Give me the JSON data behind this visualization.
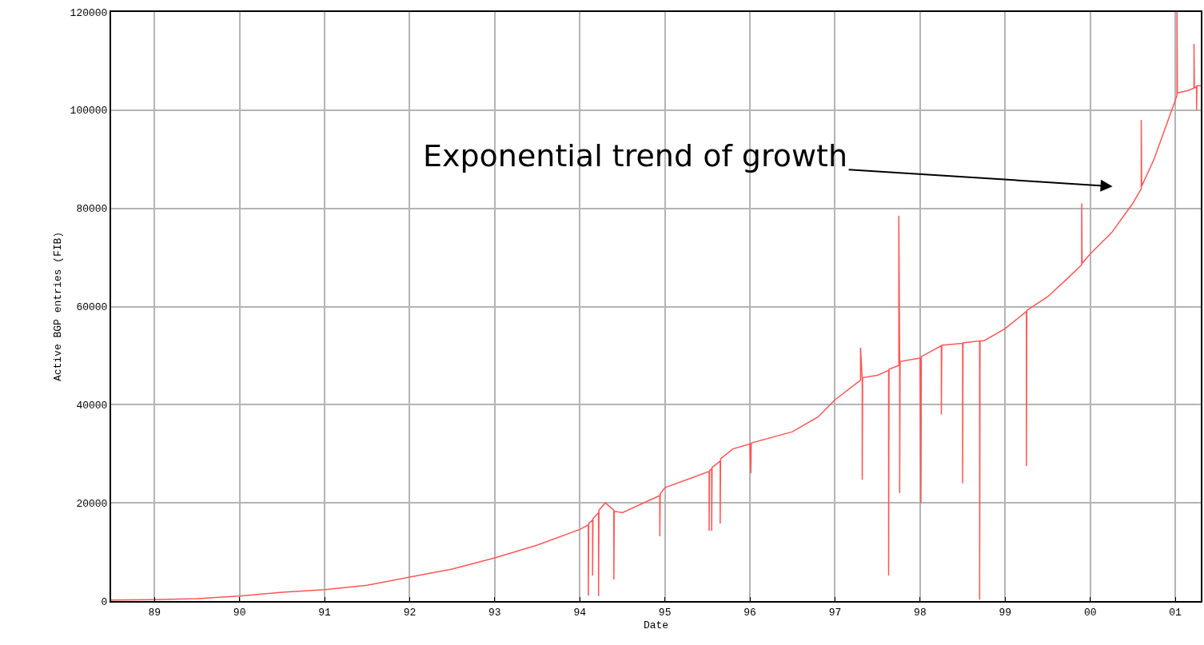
{
  "chart_data": {
    "type": "line",
    "xlabel": "Date",
    "ylabel": "Active BGP entries (FIB)",
    "annotations": [
      "Exponential trend of growth"
    ],
    "xlim": [
      1988.49,
      2001.3
    ],
    "ylim": [
      0,
      120000
    ],
    "xticks": [
      {
        "value": 1989,
        "label": "89"
      },
      {
        "value": 1990,
        "label": "90"
      },
      {
        "value": 1991,
        "label": "91"
      },
      {
        "value": 1992,
        "label": "92"
      },
      {
        "value": 1993,
        "label": "93"
      },
      {
        "value": 1994,
        "label": "94"
      },
      {
        "value": 1995,
        "label": "95"
      },
      {
        "value": 1996,
        "label": "96"
      },
      {
        "value": 1997,
        "label": "97"
      },
      {
        "value": 1998,
        "label": "98"
      },
      {
        "value": 1999,
        "label": "99"
      },
      {
        "value": 2000,
        "label": "00"
      },
      {
        "value": 2001,
        "label": "01"
      }
    ],
    "yticks": [
      0,
      20000,
      40000,
      60000,
      80000,
      100000,
      120000
    ],
    "grid": true,
    "marker": "none",
    "line_style": "solid",
    "series": [
      {
        "color": "#ff5555",
        "x": [
          1988.49,
          1989,
          1989.5,
          1990,
          1990.5,
          1991,
          1991.5,
          1992,
          1992.5,
          1993,
          1993.5,
          1994,
          1994.1,
          1994.1,
          1994.105,
          1994.15,
          1994.15,
          1994.155,
          1994.22,
          1994.22,
          1994.225,
          1994.3,
          1994.4,
          1994.4,
          1994.405,
          1994.5,
          1994.94,
          1994.94,
          1994.945,
          1995,
          1995.3,
          1995.52,
          1995.52,
          1995.525,
          1995.55,
          1995.55,
          1995.555,
          1995.65,
          1995.65,
          1995.655,
          1995.8,
          1996,
          1996.01,
          1996.015,
          1996.5,
          1996.8,
          1997,
          1997.3,
          1997.3,
          1997.32,
          1997.32,
          1997.325,
          1997.5,
          1997.63,
          1997.63,
          1997.635,
          1997.75,
          1997.75,
          1997.76,
          1997.76,
          1997.765,
          1998,
          1998.01,
          1998.015,
          1998.25,
          1998.25,
          1998.255,
          1998.5,
          1998.5,
          1998.505,
          1998.7,
          1998.7,
          1998.705,
          1998.75,
          1999,
          1999.25,
          1999.25,
          1999.255,
          1999.5,
          1999.75,
          1999.9,
          1999.9,
          1999.905,
          2000,
          2000.25,
          2000.5,
          2000.6,
          2000.6,
          2000.605,
          2000.75,
          2001,
          2001.02,
          2001.02,
          2001.025,
          2001.15,
          2001.22,
          2001.22,
          2001.225,
          2001.25,
          2001.25,
          2001.255,
          2001.3
        ],
        "values": [
          200,
          300,
          500,
          1000,
          1800,
          2300,
          3200,
          4900,
          6500,
          8800,
          11400,
          14600,
          15500,
          1100,
          15800,
          16500,
          5200,
          16800,
          18000,
          1000,
          18500,
          20000,
          18500,
          4400,
          18300,
          18000,
          21500,
          13200,
          21800,
          23100,
          25000,
          26400,
          14300,
          26500,
          27000,
          14300,
          27200,
          28500,
          15800,
          29000,
          31000,
          32000,
          26000,
          32200,
          34500,
          37500,
          41000,
          45000,
          51600,
          45200,
          24700,
          45500,
          46000,
          47000,
          5200,
          47200,
          48000,
          78500,
          48500,
          22000,
          48800,
          49500,
          19900,
          49800,
          52000,
          38000,
          52100,
          52500,
          24000,
          52600,
          53000,
          300,
          53000,
          53000,
          55500,
          59000,
          27500,
          59200,
          62000,
          66000,
          68500,
          81000,
          68800,
          70700,
          75000,
          81000,
          84000,
          98000,
          84500,
          90000,
          102000,
          103000,
          120000,
          103500,
          104000,
          104500,
          113500,
          104500,
          104800,
          100000,
          105000,
          105000
        ]
      }
    ]
  }
}
